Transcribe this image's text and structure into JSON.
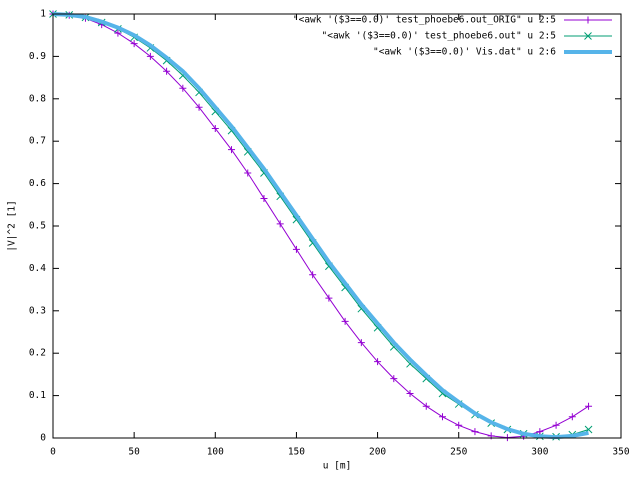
{
  "chart_data": {
    "type": "line",
    "xlabel": "u [m]",
    "ylabel": "|V|^2 [1]",
    "xlim": [
      0,
      350
    ],
    "xticks": [
      0,
      50,
      100,
      150,
      200,
      250,
      300,
      350
    ],
    "ylim": [
      0,
      1
    ],
    "yticks": [
      0,
      0.1,
      0.2,
      0.3,
      0.4,
      0.5,
      0.6,
      0.7,
      0.8,
      0.9,
      1
    ],
    "legend": "top right",
    "x": [
      0,
      10,
      20,
      30,
      40,
      50,
      60,
      70,
      80,
      90,
      100,
      110,
      120,
      130,
      140,
      150,
      160,
      170,
      180,
      190,
      200,
      210,
      220,
      230,
      240,
      250,
      260,
      270,
      280,
      290,
      300,
      310,
      320,
      330
    ],
    "series": [
      {
        "name": "\"<awk '($3==0.0)' test_phoebe6.out_ORIG\" u 2:5",
        "color": "#9400d3",
        "marker": "plus",
        "values": [
          1.0,
          0.997,
          0.99,
          0.975,
          0.955,
          0.93,
          0.9,
          0.865,
          0.825,
          0.78,
          0.73,
          0.68,
          0.625,
          0.565,
          0.505,
          0.445,
          0.385,
          0.33,
          0.275,
          0.225,
          0.18,
          0.14,
          0.105,
          0.075,
          0.05,
          0.03,
          0.015,
          0.005,
          0.001,
          0.004,
          0.015,
          0.03,
          0.05,
          0.075
        ]
      },
      {
        "name": "\"<awk '($3==0.0)' test_phoebe6.out\" u 2:5",
        "color": "#009e73",
        "marker": "cross",
        "values": [
          1.0,
          0.998,
          0.992,
          0.98,
          0.965,
          0.945,
          0.92,
          0.89,
          0.855,
          0.815,
          0.77,
          0.725,
          0.675,
          0.625,
          0.57,
          0.515,
          0.46,
          0.405,
          0.355,
          0.305,
          0.26,
          0.215,
          0.175,
          0.14,
          0.105,
          0.08,
          0.055,
          0.035,
          0.02,
          0.01,
          0.004,
          0.003,
          0.008,
          0.02
        ]
      },
      {
        "name": "\"<awk '($3==0.0)' Vis.dat\" u 2:6",
        "color": "#56b4e9",
        "marker": "none",
        "values": [
          1.0,
          0.998,
          0.993,
          0.982,
          0.968,
          0.95,
          0.926,
          0.897,
          0.865,
          0.825,
          0.78,
          0.735,
          0.685,
          0.635,
          0.58,
          0.525,
          0.47,
          0.415,
          0.365,
          0.315,
          0.27,
          0.225,
          0.185,
          0.148,
          0.113,
          0.085,
          0.058,
          0.037,
          0.021,
          0.01,
          0.004,
          0.002,
          0.005,
          0.012
        ]
      }
    ]
  }
}
